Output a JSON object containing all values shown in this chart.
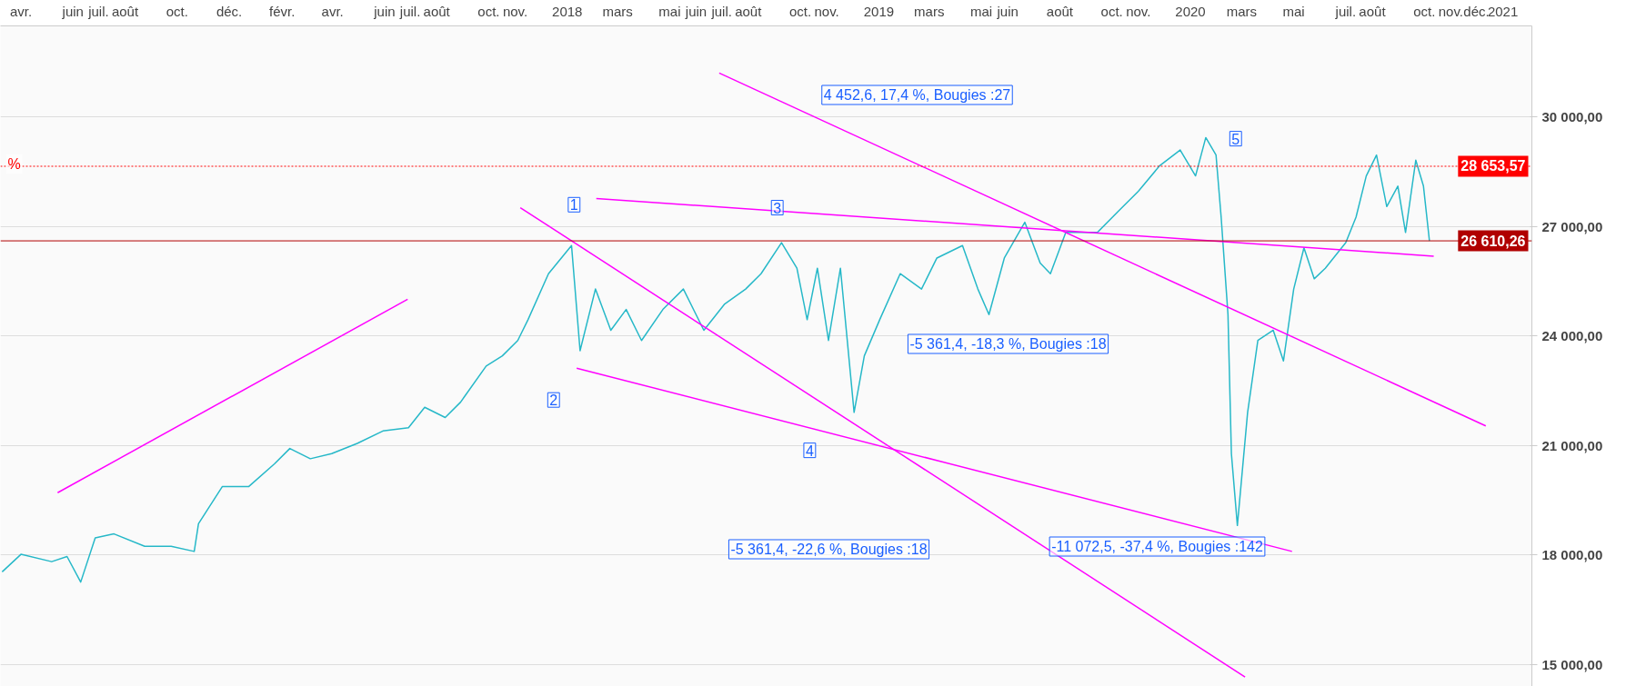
{
  "chart_data": {
    "type": "line",
    "xlim": [
      "2016-03-08",
      "2021-02-04"
    ],
    "ylim": [
      14400,
      32500
    ],
    "yticks": [
      {
        "value": 15000,
        "label": "15 000,00"
      },
      {
        "value": 18000,
        "label": "18 000,00"
      },
      {
        "value": 21000,
        "label": "21 000,00"
      },
      {
        "value": 24000,
        "label": "24 000,00"
      },
      {
        "value": 27000,
        "label": "27 000,00"
      },
      {
        "value": 30000,
        "label": "30 000,00"
      }
    ],
    "xticks": [
      {
        "value": "2016-04-01",
        "label": "avr."
      },
      {
        "value": "2016-06-01",
        "label": "juin"
      },
      {
        "value": "2016-07-01",
        "label": "juil."
      },
      {
        "value": "2016-08-01",
        "label": "août"
      },
      {
        "value": "2016-10-01",
        "label": "oct."
      },
      {
        "value": "2016-12-01",
        "label": "déc."
      },
      {
        "value": "2017-02-01",
        "label": "févr."
      },
      {
        "value": "2017-04-01",
        "label": "avr."
      },
      {
        "value": "2017-06-01",
        "label": "juin"
      },
      {
        "value": "2017-07-01",
        "label": "juil."
      },
      {
        "value": "2017-08-01",
        "label": "août"
      },
      {
        "value": "2017-10-01",
        "label": "oct."
      },
      {
        "value": "2017-11-01",
        "label": "nov."
      },
      {
        "value": "2018-01-01",
        "label": "2018"
      },
      {
        "value": "2018-03-01",
        "label": "mars"
      },
      {
        "value": "2018-05-01",
        "label": "mai"
      },
      {
        "value": "2018-06-01",
        "label": "juin"
      },
      {
        "value": "2018-07-01",
        "label": "juil."
      },
      {
        "value": "2018-08-01",
        "label": "août"
      },
      {
        "value": "2018-10-01",
        "label": "oct."
      },
      {
        "value": "2018-11-01",
        "label": "nov."
      },
      {
        "value": "2019-01-01",
        "label": "2019"
      },
      {
        "value": "2019-03-01",
        "label": "mars"
      },
      {
        "value": "2019-05-01",
        "label": "mai"
      },
      {
        "value": "2019-06-01",
        "label": "juin"
      },
      {
        "value": "2019-08-01",
        "label": "août"
      },
      {
        "value": "2019-10-01",
        "label": "oct."
      },
      {
        "value": "2019-11-01",
        "label": "nov."
      },
      {
        "value": "2020-01-01",
        "label": "2020"
      },
      {
        "value": "2020-03-01",
        "label": "mars"
      },
      {
        "value": "2020-05-01",
        "label": "mai"
      },
      {
        "value": "2020-07-01",
        "label": "juil."
      },
      {
        "value": "2020-08-01",
        "label": "août"
      },
      {
        "value": "2020-10-01",
        "label": "oct."
      },
      {
        "value": "2020-11-01",
        "label": "nov."
      },
      {
        "value": "2020-12-01",
        "label": "déc."
      },
      {
        "value": "2021-01-01",
        "label": "2021"
      }
    ],
    "grid": "y",
    "line_style": "solid",
    "series": [
      {
        "color": "#26b8c8",
        "x": [
          "2016-03-10",
          "2016-04-01",
          "2016-05-07",
          "2016-05-25",
          "2016-06-10",
          "2016-06-27",
          "2016-07-19",
          "2016-08-24",
          "2016-09-24",
          "2016-10-21",
          "2016-10-26",
          "2016-11-23",
          "2016-12-24",
          "2017-01-23",
          "2017-02-10",
          "2017-03-06",
          "2017-03-31",
          "2017-04-30",
          "2017-05-30",
          "2017-06-29",
          "2017-07-18",
          "2017-08-11",
          "2017-08-29",
          "2017-09-28",
          "2017-10-17",
          "2017-11-04",
          "2017-11-16",
          "2017-12-10",
          "2018-01-06",
          "2018-01-16",
          "2018-02-03",
          "2018-02-21",
          "2018-03-11",
          "2018-03-29",
          "2018-04-23",
          "2018-05-17",
          "2018-06-10",
          "2018-07-04",
          "2018-07-29",
          "2018-08-16",
          "2018-09-09",
          "2018-09-27",
          "2018-10-09",
          "2018-10-21",
          "2018-11-03",
          "2018-11-17",
          "2018-12-03",
          "2018-12-15",
          "2019-01-02",
          "2019-01-26",
          "2019-02-20",
          "2019-03-10",
          "2019-04-09",
          "2019-04-27",
          "2019-05-10",
          "2019-05-28",
          "2019-06-21",
          "2019-07-09",
          "2019-07-21",
          "2019-08-08",
          "2019-09-14",
          "2019-10-08",
          "2019-11-01",
          "2019-11-26",
          "2019-12-20",
          "2020-01-07",
          "2020-01-19",
          "2020-01-31",
          "2020-02-06",
          "2020-02-14",
          "2020-02-18",
          "2020-02-25",
          "2020-03-08",
          "2020-03-20",
          "2020-04-07",
          "2020-04-19",
          "2020-05-01",
          "2020-05-13",
          "2020-05-25",
          "2020-06-07",
          "2020-07-01",
          "2020-07-13",
          "2020-07-25",
          "2020-08-06",
          "2020-08-18",
          "2020-08-31",
          "2020-09-09",
          "2020-09-21",
          "2020-09-30",
          "2020-10-07"
        ],
        "values": [
          17540,
          18020,
          17820,
          17960,
          17260,
          18470,
          18580,
          18240,
          18240,
          18100,
          18860,
          19880,
          19880,
          20500,
          20920,
          20640,
          20780,
          21060,
          21400,
          21490,
          22050,
          21770,
          22190,
          23180,
          23460,
          23880,
          24450,
          25710,
          26480,
          23600,
          25290,
          24160,
          24730,
          23880,
          24730,
          25290,
          24160,
          24870,
          25290,
          25710,
          26560,
          25860,
          24450,
          25860,
          23880,
          25860,
          21910,
          23460,
          24450,
          25710,
          25290,
          26140,
          26480,
          25290,
          24590,
          26140,
          27120,
          26000,
          25710,
          26840,
          26840,
          27410,
          27970,
          28670,
          29100,
          28390,
          29440,
          28960,
          27260,
          24590,
          20780,
          18810,
          21910,
          23880,
          24160,
          23320,
          25290,
          26420,
          25570,
          25860,
          26560,
          27260,
          28390,
          28960,
          27550,
          28110,
          26840,
          28820,
          28110,
          26610
        ]
      },
      {
        "type": "line",
        "color": "#ff00ff",
        "x": [
          "2016-05-14",
          "2017-06-28"
        ],
        "values": [
          19710,
          25010
        ]
      },
      {
        "type": "line",
        "color": "#ff00ff",
        "x": [
          "2017-11-07",
          "2020-03-05"
        ],
        "values": [
          27520,
          14660
        ]
      },
      {
        "type": "line",
        "color": "#ff00ff",
        "x": [
          "2018-02-04",
          "2020-10-12"
        ],
        "values": [
          27770,
          26190
        ]
      },
      {
        "type": "line",
        "color": "#ff00ff",
        "x": [
          "2018-06-28",
          "2020-12-12"
        ],
        "values": [
          31210,
          21540
        ]
      },
      {
        "type": "line",
        "color": "#ff00ff",
        "x": [
          "2018-01-12",
          "2020-04-29"
        ],
        "values": [
          23120,
          18100
        ]
      }
    ],
    "ref_lines": [
      {
        "axis": "y",
        "value": 28653.57,
        "label": "28 653,57",
        "color": "#ff0000",
        "line_style": "dotted"
      },
      {
        "axis": "y",
        "value": 26610.26,
        "label": "26 610,26",
        "color": "#b00000",
        "line_style": "solid"
      }
    ],
    "annotations": [
      "%",
      {
        "text": "1",
        "x": "2018-01-09",
        "y": 27600
      },
      {
        "text": "2",
        "x": "2017-12-16",
        "y": 22250
      },
      {
        "text": "3",
        "x": "2018-09-04",
        "y": 27520
      },
      {
        "text": "4",
        "x": "2018-10-12",
        "y": 20870
      },
      {
        "text": "5",
        "x": "2020-02-23",
        "y": 29410
      },
      "4 452,6, 17,4 %, Bougies :27",
      "-5 361,4, -18,3 %, Bougies :18",
      "-5 361,4, -22,6 %, Bougies :18",
      "-11 072,5, -37,4 %, Bougies :142"
    ]
  }
}
